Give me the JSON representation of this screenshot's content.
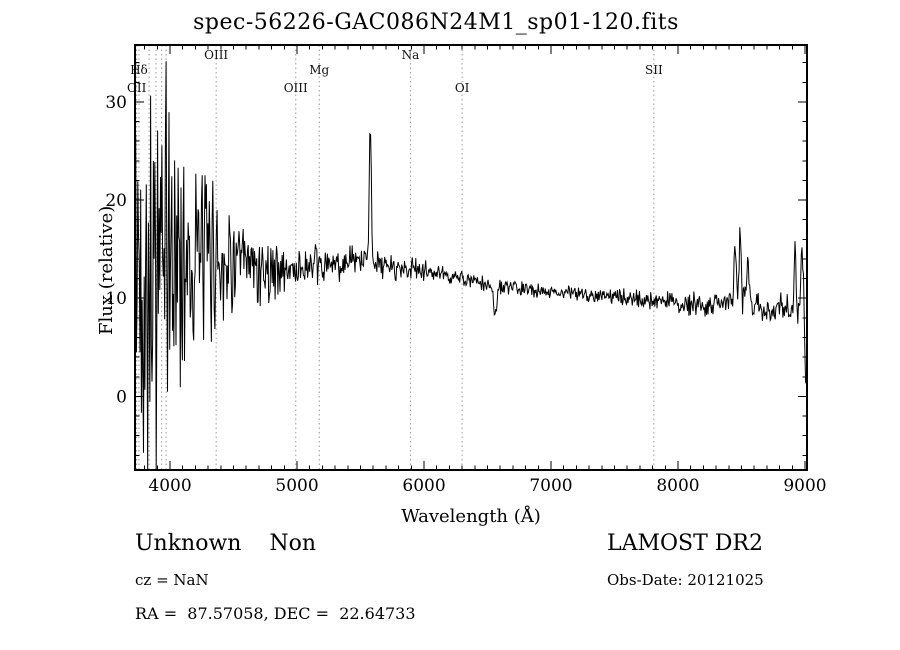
{
  "title": "spec-56226-GAC086N24M1_sp01-120.fits",
  "footer": {
    "class_label": "Unknown    Non",
    "survey": "LAMOST DR2",
    "cz": "cz = NaN",
    "obs_date": "Obs-Date: 20121025",
    "radec": "RA =  87.57058, DEC =  22.64733"
  },
  "chart_data": {
    "type": "line",
    "title": "spec-56226-GAC086N24M1_sp01-120.fits",
    "xlabel": "Wavelength (Å)",
    "ylabel": "Flux (relative)",
    "xlim": [
      3724,
      9016
    ],
    "ylim": [
      -7.5,
      35.8
    ],
    "x_ticks": [
      4000,
      5000,
      6000,
      7000,
      8000,
      9000
    ],
    "y_ticks": [
      0,
      10,
      20,
      30
    ],
    "x_minor_step": 100,
    "y_minor_step": 2,
    "line_color": "#000000",
    "grid": false,
    "legend": "none",
    "continuum": [
      [
        3724,
        12.5
      ],
      [
        3850,
        13.5
      ],
      [
        4000,
        14.0
      ],
      [
        4200,
        14.5
      ],
      [
        4400,
        14.0
      ],
      [
        4600,
        13.2
      ],
      [
        4800,
        12.8
      ],
      [
        5000,
        13.0
      ],
      [
        5200,
        13.2
      ],
      [
        5400,
        13.6
      ],
      [
        5550,
        13.8
      ],
      [
        5700,
        13.2
      ],
      [
        5900,
        13.0
      ],
      [
        6100,
        12.5
      ],
      [
        6300,
        12.0
      ],
      [
        6500,
        11.3
      ],
      [
        6700,
        11.0
      ],
      [
        7000,
        10.7
      ],
      [
        7300,
        10.4
      ],
      [
        7600,
        10.0
      ],
      [
        7900,
        9.7
      ],
      [
        8100,
        9.3
      ],
      [
        8300,
        9.4
      ],
      [
        8500,
        9.8
      ],
      [
        8700,
        8.9
      ],
      [
        8900,
        9.0
      ],
      [
        9016,
        9.3
      ]
    ],
    "noise_amp": [
      [
        3724,
        15
      ],
      [
        3850,
        16
      ],
      [
        3960,
        13
      ],
      [
        4060,
        10
      ],
      [
        4160,
        8
      ],
      [
        4280,
        6
      ],
      [
        4420,
        4
      ],
      [
        4600,
        2.6
      ],
      [
        4800,
        2.2
      ],
      [
        5000,
        1.5
      ],
      [
        5300,
        1.2
      ],
      [
        5600,
        1.0
      ],
      [
        5900,
        0.8
      ],
      [
        6200,
        0.55
      ],
      [
        6600,
        0.5
      ],
      [
        7000,
        0.45
      ],
      [
        7400,
        0.5
      ],
      [
        7800,
        0.65
      ],
      [
        8100,
        0.8
      ],
      [
        8400,
        1.0
      ],
      [
        8600,
        0.9
      ],
      [
        8800,
        1.0
      ],
      [
        9016,
        1.5
      ]
    ],
    "emission_spikes": [
      [
        5577,
        15,
        8
      ],
      [
        6560,
        -2.8,
        12
      ],
      [
        8450,
        6,
        8
      ],
      [
        8490,
        8,
        7
      ],
      [
        8550,
        5,
        8
      ],
      [
        8920,
        5.5,
        8
      ],
      [
        8975,
        7,
        7
      ],
      [
        9008,
        -9,
        8
      ]
    ],
    "seed": 42,
    "samples": 950,
    "spectral_lines": [
      {
        "label": "Hδ",
        "wavelength": 3755,
        "row": 1
      },
      {
        "label": "OII",
        "wavelength": 3737,
        "row": 2
      },
      {
        "label": "OIII",
        "wavelength": 4363,
        "row": 0
      },
      {
        "label": "OIII",
        "wavelength": 4990,
        "row": 2
      },
      {
        "label": "Mg",
        "wavelength": 5175,
        "row": 1
      },
      {
        "label": "Na",
        "wavelength": 5893,
        "row": 0
      },
      {
        "label": "OI",
        "wavelength": 6300,
        "row": 2
      },
      {
        "label": "SII",
        "wavelength": 7810,
        "row": 1
      }
    ],
    "extra_dotted_lines": [
      3727,
      3835,
      3889,
      3934,
      3969
    ]
  }
}
